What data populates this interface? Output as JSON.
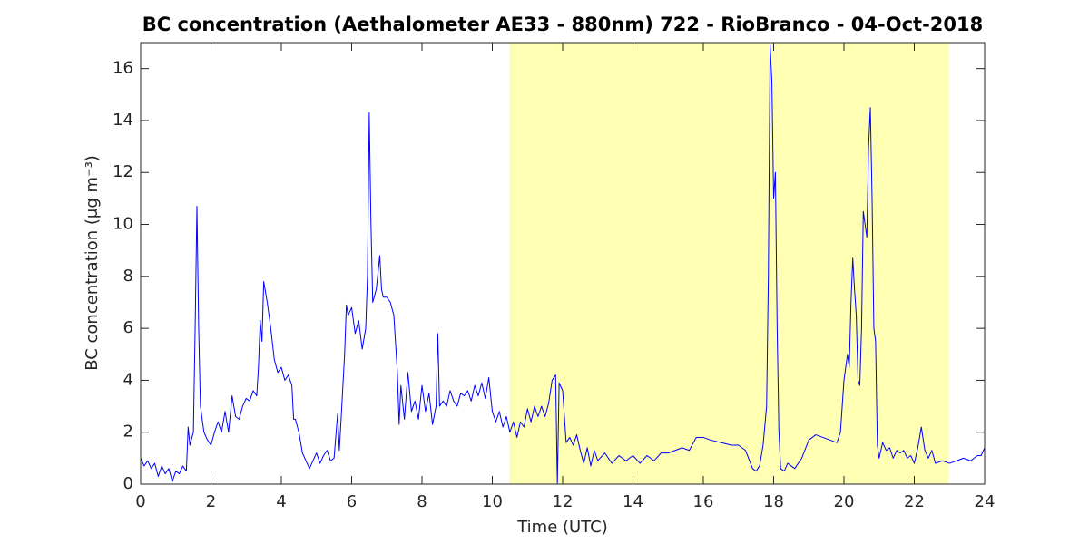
{
  "chart_data": {
    "type": "line",
    "title": "BC concentration (Aethalometer AE33 - 880nm) 722 - RioBranco - 04-Oct-2018",
    "xlabel": "Time (UTC)",
    "ylabel": "BC concentration (μg m⁻³)",
    "xlim": [
      0,
      24
    ],
    "xticks": [
      0,
      2,
      4,
      6,
      8,
      10,
      12,
      14,
      16,
      18,
      20,
      22,
      24
    ],
    "ylim": [
      0,
      17
    ],
    "yticks": [
      0,
      2,
      4,
      6,
      8,
      10,
      12,
      14,
      16
    ],
    "shade": {
      "from": 10.48,
      "to": 22.98,
      "color": "#ffffb3"
    },
    "x": [
      0,
      0.1,
      0.2,
      0.3,
      0.4,
      0.5,
      0.6,
      0.7,
      0.8,
      0.9,
      1.0,
      1.1,
      1.2,
      1.3,
      1.35,
      1.4,
      1.5,
      1.55,
      1.6,
      1.65,
      1.7,
      1.8,
      1.9,
      2.0,
      2.1,
      2.2,
      2.3,
      2.4,
      2.5,
      2.6,
      2.7,
      2.8,
      2.9,
      3.0,
      3.1,
      3.2,
      3.3,
      3.35,
      3.4,
      3.45,
      3.5,
      3.6,
      3.7,
      3.8,
      3.9,
      4.0,
      4.1,
      4.2,
      4.3,
      4.35,
      4.4,
      4.5,
      4.6,
      4.7,
      4.8,
      4.9,
      5.0,
      5.1,
      5.2,
      5.3,
      5.4,
      5.5,
      5.6,
      5.65,
      5.7,
      5.8,
      5.85,
      5.9,
      6.0,
      6.1,
      6.2,
      6.3,
      6.4,
      6.45,
      6.5,
      6.55,
      6.6,
      6.7,
      6.8,
      6.85,
      6.9,
      7.0,
      7.1,
      7.2,
      7.3,
      7.35,
      7.4,
      7.5,
      7.6,
      7.7,
      7.8,
      7.9,
      8.0,
      8.1,
      8.2,
      8.3,
      8.4,
      8.45,
      8.5,
      8.6,
      8.7,
      8.8,
      8.9,
      9.0,
      9.1,
      9.2,
      9.3,
      9.4,
      9.5,
      9.6,
      9.7,
      9.8,
      9.9,
      10.0,
      10.1,
      10.2,
      10.3,
      10.4,
      10.5,
      10.6,
      10.7,
      10.8,
      10.9,
      11.0,
      11.1,
      11.2,
      11.3,
      11.4,
      11.5,
      11.6,
      11.7,
      11.8,
      11.85,
      11.9,
      12.0,
      12.1,
      12.2,
      12.3,
      12.4,
      12.5,
      12.6,
      12.7,
      12.8,
      12.9,
      13.0,
      13.2,
      13.4,
      13.6,
      13.8,
      14.0,
      14.2,
      14.4,
      14.6,
      14.8,
      15.0,
      15.2,
      15.4,
      15.6,
      15.8,
      16.0,
      16.2,
      16.5,
      16.8,
      17.0,
      17.2,
      17.4,
      17.5,
      17.6,
      17.7,
      17.8,
      17.85,
      17.9,
      17.95,
      18.0,
      18.05,
      18.1,
      18.15,
      18.2,
      18.3,
      18.4,
      18.6,
      18.8,
      19.0,
      19.2,
      19.4,
      19.6,
      19.8,
      19.9,
      20.0,
      20.1,
      20.15,
      20.2,
      20.25,
      20.3,
      20.35,
      20.4,
      20.45,
      20.5,
      20.55,
      20.6,
      20.65,
      20.7,
      20.75,
      20.8,
      20.85,
      20.9,
      20.95,
      21.0,
      21.1,
      21.2,
      21.3,
      21.4,
      21.5,
      21.6,
      21.7,
      21.8,
      21.9,
      22.0,
      22.1,
      22.2,
      22.3,
      22.4,
      22.5,
      22.6,
      22.8,
      23.0,
      23.2,
      23.4,
      23.6,
      23.8,
      23.9,
      24.0
    ],
    "series": [
      {
        "color": "#0000ff",
        "values": [
          1.0,
          0.7,
          0.9,
          0.6,
          0.8,
          0.3,
          0.7,
          0.4,
          0.6,
          0.1,
          0.5,
          0.4,
          0.7,
          0.5,
          2.2,
          1.5,
          2.0,
          6.0,
          10.7,
          6.0,
          3.0,
          2.0,
          1.7,
          1.5,
          2.0,
          2.4,
          2.0,
          2.8,
          2.0,
          3.4,
          2.6,
          2.5,
          3.0,
          3.3,
          3.2,
          3.6,
          3.4,
          4.5,
          6.3,
          5.5,
          7.8,
          7.0,
          6.0,
          4.8,
          4.3,
          4.5,
          4.0,
          4.2,
          3.8,
          2.5,
          2.5,
          2.0,
          1.2,
          0.9,
          0.6,
          0.9,
          1.2,
          0.8,
          1.1,
          1.3,
          0.9,
          1.0,
          2.7,
          1.3,
          2.5,
          5.0,
          6.9,
          6.5,
          6.8,
          5.8,
          6.3,
          5.2,
          6.0,
          8.0,
          14.3,
          10.0,
          7.0,
          7.5,
          8.8,
          7.5,
          7.2,
          7.2,
          7.0,
          6.5,
          4.3,
          2.3,
          3.8,
          2.5,
          4.3,
          2.8,
          3.2,
          2.5,
          3.8,
          2.8,
          3.5,
          2.3,
          3.0,
          5.8,
          3.0,
          3.2,
          3.0,
          3.6,
          3.2,
          3.0,
          3.5,
          3.4,
          3.6,
          3.2,
          3.8,
          3.4,
          3.9,
          3.3,
          4.1,
          2.8,
          2.4,
          2.8,
          2.2,
          2.6,
          2.0,
          2.4,
          1.8,
          2.4,
          2.2,
          2.9,
          2.4,
          3.0,
          2.6,
          3.0,
          2.6,
          3.1,
          4.0,
          4.2,
          0,
          3.9,
          3.6,
          1.6,
          1.8,
          1.5,
          1.9,
          1.3,
          0.8,
          1.4,
          0.7,
          1.3,
          0.9,
          1.2,
          0.8,
          1.1,
          0.9,
          1.1,
          0.8,
          1.1,
          0.9,
          1.2,
          1.2,
          1.3,
          1.4,
          1.3,
          1.8,
          1.8,
          1.7,
          1.6,
          1.5,
          1.5,
          1.3,
          0.6,
          0.5,
          0.7,
          1.5,
          3.0,
          8.0,
          16.9,
          15.5,
          11.0,
          12.0,
          6.0,
          2.0,
          0.6,
          0.5,
          0.8,
          0.6,
          1.0,
          1.7,
          1.9,
          1.8,
          1.7,
          1.6,
          2.0,
          4.0,
          5.0,
          4.5,
          7.0,
          8.7,
          7.5,
          6.5,
          4.0,
          3.8,
          6.0,
          10.5,
          10.0,
          9.5,
          13.0,
          14.5,
          11.0,
          6.0,
          5.5,
          1.5,
          1.0,
          1.6,
          1.3,
          1.4,
          1.0,
          1.3,
          1.2,
          1.3,
          1.0,
          1.1,
          0.8,
          1.4,
          2.2,
          1.3,
          1.0,
          1.3,
          0.8,
          0.9,
          0.8,
          0.9,
          1.0,
          0.9,
          1.1,
          1.1,
          1.4
        ]
      }
    ]
  }
}
